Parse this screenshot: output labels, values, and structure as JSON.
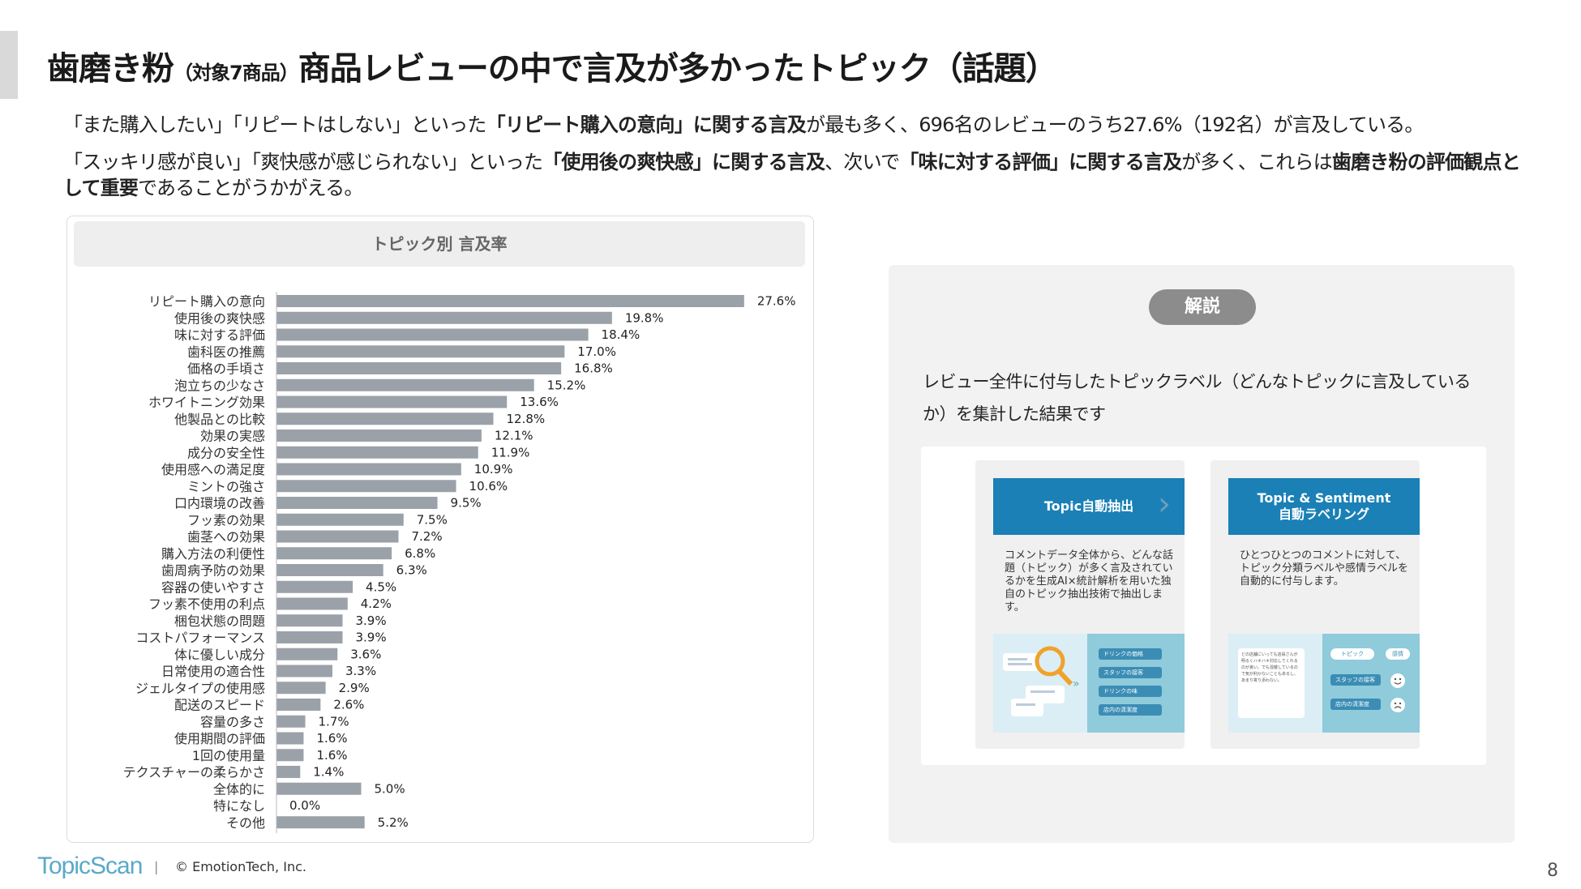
{
  "title": {
    "main": "歯磨き粉",
    "sub": "（対象7商品）",
    "rest": "商品レビューの中で言及が多かったトピック（話題）"
  },
  "lead1": [
    {
      "t": "「また購入したい」「リピートはしない」といった",
      "b": false
    },
    {
      "t": "「リピート購入の意向」に関する言及",
      "b": true
    },
    {
      "t": "が最も多く、696名のレビューのうち27.6%（192名）が言及している。",
      "b": false
    }
  ],
  "lead2": [
    {
      "t": "「スッキリ感が良い」「爽快感が感じられない」といった",
      "b": false
    },
    {
      "t": "「使用後の爽快感」に関する言及",
      "b": true
    },
    {
      "t": "、次いで",
      "b": false
    },
    {
      "t": "「味に対する評価」に関する言及",
      "b": true
    },
    {
      "t": "が多く、これらは",
      "b": false
    },
    {
      "t": "歯磨き粉の評価観点として重要",
      "b": true
    },
    {
      "t": "であることがうかがえる。",
      "b": false
    }
  ],
  "chart_data": {
    "type": "bar",
    "orientation": "horizontal",
    "title": "トピック別 言及率",
    "categories": [
      "リピート購入の意向",
      "使用後の爽快感",
      "味に対する評価",
      "歯科医の推薦",
      "価格の手頃さ",
      "泡立ちの少なさ",
      "ホワイトニング効果",
      "他製品との比較",
      "効果の実感",
      "成分の安全性",
      "使用感への満足度",
      "ミントの強さ",
      "口内環境の改善",
      "フッ素の効果",
      "歯茎への効果",
      "購入方法の利便性",
      "歯周病予防の効果",
      "容器の使いやすさ",
      "フッ素不使用の利点",
      "梱包状態の問題",
      "コストパフォーマンス",
      "体に優しい成分",
      "日常使用の適合性",
      "ジェルタイプの使用感",
      "配送のスピード",
      "容量の多さ",
      "使用期間の評価",
      "1回の使用量",
      "テクスチャーの柔らかさ",
      "全体的に",
      "特になし",
      "その他"
    ],
    "values": [
      27.6,
      19.8,
      18.4,
      17.0,
      16.8,
      15.2,
      13.6,
      12.8,
      12.1,
      11.9,
      10.9,
      10.6,
      9.5,
      7.5,
      7.2,
      6.8,
      6.3,
      4.5,
      4.2,
      3.9,
      3.9,
      3.6,
      3.3,
      2.9,
      2.6,
      1.7,
      1.6,
      1.6,
      1.4,
      5.0,
      0.0,
      5.2
    ],
    "labels": [
      "27.6%",
      "19.8%",
      "18.4%",
      "17.0%",
      "16.8%",
      "15.2%",
      "13.6%",
      "12.8%",
      "12.1%",
      "11.9%",
      "10.9%",
      "10.6%",
      "9.5%",
      "7.5%",
      "7.2%",
      "6.8%",
      "6.3%",
      "4.5%",
      "4.2%",
      "3.9%",
      "3.9%",
      "3.6%",
      "3.3%",
      "2.9%",
      "2.6%",
      "1.7%",
      "1.6%",
      "1.6%",
      "1.4%",
      "5.0%",
      "0.0%",
      "5.2%"
    ],
    "xlim": [
      0,
      30
    ],
    "bar_color": "#9aa1a9",
    "grid": false
  },
  "explain": {
    "pill": "解説",
    "text": "レビュー全件に付与したトピックラベル（どんなトピックに言及しているか）を集計した結果です",
    "card1": {
      "title": "Topic自動抽出",
      "desc": "コメントデータ全体から、どんな話題（トピック）が多く言及されているかを生成AI×統計解析を用いた独自のトピック抽出技術で抽出します。",
      "tags": [
        "ドリンクの価格",
        "スタッフの接客",
        "ドリンクの味",
        "店内の清潔度"
      ]
    },
    "card2": {
      "title_line1": "Topic & Sentiment",
      "title_line2": "自動ラベリング",
      "desc": "ひとつひとつのコメントに対して、トピック分類ラベルや感情ラベルを自動的に付与します。",
      "comment": "どの店舗にいっても店員さんが明るくハキハキ対応してくれるのが良い。でも混雑しているので気が利かないこともあるし、あまり寄り添わない。",
      "head_topic": "トピック",
      "head_emotion": "感情",
      "tags": [
        "スタッフの接客",
        "店内の清潔度"
      ]
    },
    "accent": "#1a80b6"
  },
  "footer": {
    "logo": "TopicScan",
    "sep": "|",
    "copyright": "© EmotionTech, Inc.",
    "page": "8"
  }
}
